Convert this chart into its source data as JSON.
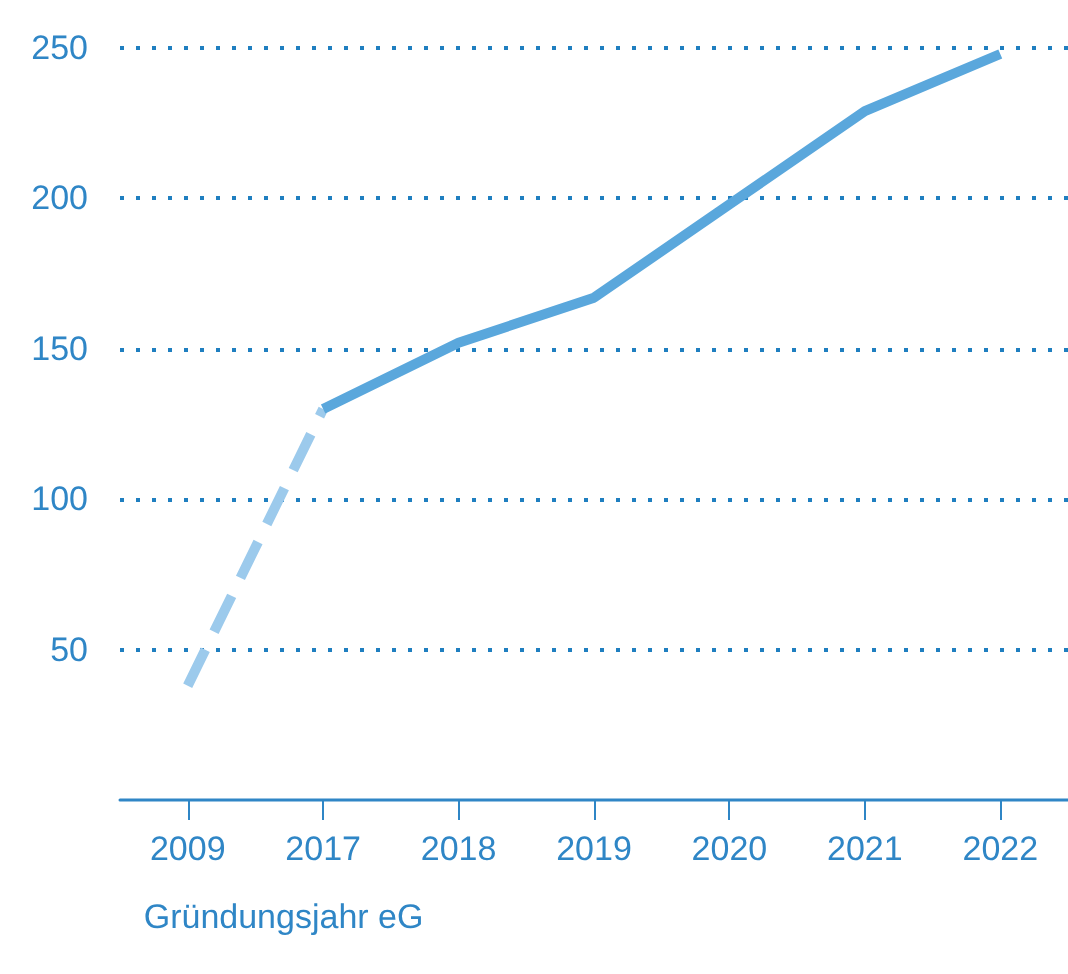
{
  "chart_data": {
    "type": "line",
    "categories": [
      "2009",
      "2017",
      "2018",
      "2019",
      "2020",
      "2021",
      "2022"
    ],
    "series": [
      {
        "color": "#9ccaec",
        "line_style": "dashed",
        "values": [
          38,
          130,
          null,
          null,
          null,
          null,
          null
        ]
      },
      {
        "color": "#5aa7dc",
        "line_style": "solid",
        "values": [
          null,
          130,
          152,
          167,
          198,
          229,
          248
        ]
      }
    ],
    "ylim": [
      0,
      250
    ],
    "yticks": [
      50,
      100,
      150,
      200,
      250
    ],
    "grid": "y",
    "marker": "none",
    "annotations": [
      "Gründungsjahr eG"
    ]
  }
}
